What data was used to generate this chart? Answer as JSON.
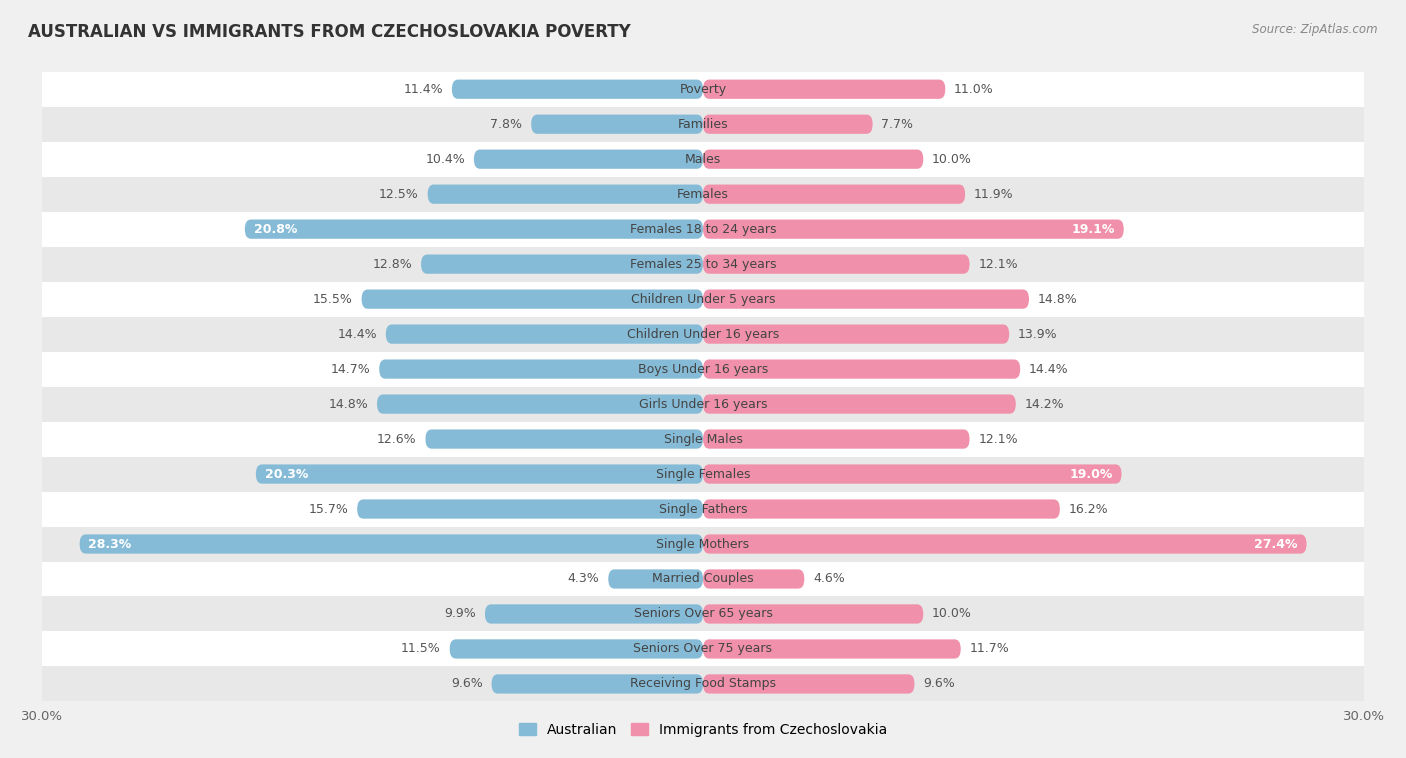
{
  "title": "AUSTRALIAN VS IMMIGRANTS FROM CZECHOSLOVAKIA POVERTY",
  "source": "Source: ZipAtlas.com",
  "categories": [
    "Poverty",
    "Families",
    "Males",
    "Females",
    "Females 18 to 24 years",
    "Females 25 to 34 years",
    "Children Under 5 years",
    "Children Under 16 years",
    "Boys Under 16 years",
    "Girls Under 16 years",
    "Single Males",
    "Single Females",
    "Single Fathers",
    "Single Mothers",
    "Married Couples",
    "Seniors Over 65 years",
    "Seniors Over 75 years",
    "Receiving Food Stamps"
  ],
  "australian": [
    11.4,
    7.8,
    10.4,
    12.5,
    20.8,
    12.8,
    15.5,
    14.4,
    14.7,
    14.8,
    12.6,
    20.3,
    15.7,
    28.3,
    4.3,
    9.9,
    11.5,
    9.6
  ],
  "immigrants": [
    11.0,
    7.7,
    10.0,
    11.9,
    19.1,
    12.1,
    14.8,
    13.9,
    14.4,
    14.2,
    12.1,
    19.0,
    16.2,
    27.4,
    4.6,
    10.0,
    11.7,
    9.6
  ],
  "australian_color": "#85bbd6",
  "immigrants_color": "#f090aa",
  "background_color": "#f0f0f0",
  "row_white_color": "#ffffff",
  "row_gray_color": "#e8e8e8",
  "axis_max": 30.0,
  "label_fontsize": 9.0,
  "value_fontsize": 9.0,
  "title_fontsize": 12,
  "bar_height": 0.55,
  "legend_australian": "Australian",
  "legend_immigrants": "Immigrants from Czechoslovakia",
  "inside_label_threshold": 19.0
}
